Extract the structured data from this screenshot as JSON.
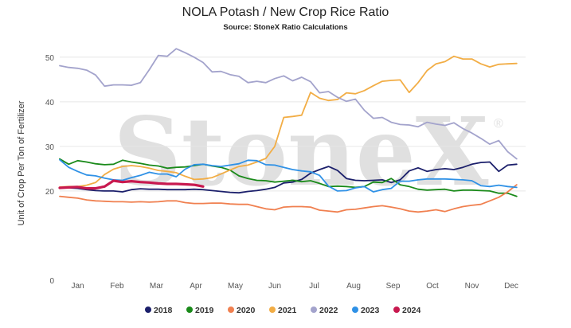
{
  "title": "NOLA Potash / New Crop Rice Ratio",
  "subtitle": "Source: StoneX Ratio Calculations",
  "watermark": {
    "text": "StoneX",
    "mark": "®"
  },
  "chart_data": {
    "type": "line",
    "title": "NOLA Potash / New Crop Rice Ratio",
    "subtitle": "Source: StoneX Ratio Calculations",
    "ylabel": "Unit of Crop Per Ton of Fertilizer",
    "xlabel": "",
    "ylim": [
      0,
      53
    ],
    "yticks": [
      0,
      20,
      30,
      40,
      50
    ],
    "xlim": [
      0,
      52
    ],
    "month_ticks": [
      {
        "label": "Jan",
        "week": 2
      },
      {
        "label": "Feb",
        "week": 6.4
      },
      {
        "label": "Mar",
        "week": 10.8
      },
      {
        "label": "Apr",
        "week": 15.2
      },
      {
        "label": "May",
        "week": 19.6
      },
      {
        "label": "Jun",
        "week": 24
      },
      {
        "label": "Jul",
        "week": 28.4
      },
      {
        "label": "Aug",
        "week": 32.8
      },
      {
        "label": "Sep",
        "week": 37.2
      },
      {
        "label": "Oct",
        "week": 41.6
      },
      {
        "label": "Nov",
        "week": 46
      },
      {
        "label": "Dec",
        "week": 50.4
      }
    ],
    "grid": "horizontal",
    "legend": "bottom",
    "series": [
      {
        "name": "2018",
        "color": "#1b1f6b",
        "values": [
          20.7,
          20.7,
          20.6,
          20.3,
          20.1,
          20.0,
          20.0,
          19.8,
          20.3,
          20.5,
          20.4,
          20.4,
          20.3,
          20.3,
          20.3,
          20.4,
          20.3,
          20.1,
          19.9,
          19.7,
          19.6,
          19.9,
          20.1,
          20.4,
          20.8,
          21.8,
          22.0,
          22.6,
          24.0,
          24.8,
          25.5,
          24.6,
          22.8,
          22.4,
          22.3,
          22.4,
          22.5,
          21.9,
          22.5,
          24.5,
          25.2,
          24.4,
          24.8,
          25.0,
          24.8,
          25.3,
          26.0,
          26.4,
          26.5,
          24.4,
          25.8,
          26.0
        ]
      },
      {
        "name": "2019",
        "color": "#1a8a1a",
        "values": [
          27.2,
          26.0,
          26.8,
          26.5,
          26.1,
          25.9,
          26.0,
          26.9,
          26.5,
          26.2,
          25.8,
          25.6,
          25.1,
          25.3,
          25.4,
          25.7,
          26.0,
          25.6,
          25.3,
          24.7,
          23.4,
          22.8,
          22.4,
          22.3,
          22.0,
          22.2,
          22.4,
          22.1,
          22.3,
          21.7,
          21.0,
          21.1,
          21.0,
          20.8,
          21.0,
          22.0,
          21.9,
          22.8,
          21.4,
          21.0,
          20.4,
          20.2,
          20.3,
          20.4,
          20.0,
          20.2,
          20.2,
          20.1,
          20.0,
          19.5,
          19.5,
          18.8
        ]
      },
      {
        "name": "2020",
        "color": "#f08050",
        "values": [
          18.8,
          18.6,
          18.4,
          18.0,
          17.8,
          17.7,
          17.6,
          17.6,
          17.5,
          17.6,
          17.5,
          17.6,
          17.8,
          17.8,
          17.4,
          17.2,
          17.2,
          17.3,
          17.3,
          17.1,
          17.0,
          17.0,
          16.5,
          16.0,
          15.8,
          16.4,
          16.5,
          16.5,
          16.4,
          15.7,
          15.5,
          15.3,
          15.8,
          15.9,
          16.2,
          16.5,
          16.7,
          16.4,
          16.0,
          15.5,
          15.3,
          15.5,
          15.8,
          15.4,
          16.0,
          16.5,
          16.8,
          17.0,
          17.8,
          18.6,
          19.8,
          21.4
        ]
      },
      {
        "name": "2021",
        "color": "#f2ad45",
        "values": [
          20.9,
          21.0,
          21.0,
          21.3,
          21.9,
          23.7,
          24.9,
          25.5,
          25.7,
          25.5,
          25.1,
          24.6,
          24.4,
          24.1,
          23.3,
          22.6,
          22.7,
          23.0,
          23.8,
          24.7,
          25.5,
          25.8,
          26.5,
          27.3,
          30.0,
          36.5,
          36.7,
          37.0,
          42.1,
          40.8,
          40.3,
          40.5,
          42.0,
          41.8,
          42.5,
          43.6,
          44.6,
          44.8,
          44.9,
          42.1,
          44.3,
          47.0,
          48.5,
          49.0,
          50.2,
          49.6,
          49.6,
          48.5,
          47.8,
          48.4,
          48.5,
          48.6
        ]
      },
      {
        "name": "2022",
        "color": "#a3a3cc",
        "values": [
          48.1,
          47.7,
          47.5,
          47.1,
          46.0,
          43.5,
          43.8,
          43.8,
          43.7,
          44.3,
          47.2,
          50.4,
          50.2,
          51.9,
          51.0,
          50.0,
          48.8,
          46.7,
          46.8,
          46.1,
          45.7,
          44.3,
          44.6,
          44.3,
          45.2,
          45.8,
          44.7,
          45.5,
          44.5,
          42.0,
          42.3,
          41.0,
          40.1,
          40.6,
          38.1,
          36.3,
          36.5,
          35.4,
          34.9,
          34.8,
          34.4,
          35.4,
          35.0,
          34.7,
          35.3,
          34.0,
          33.0,
          31.8,
          30.5,
          31.3,
          28.8,
          27.2
        ]
      },
      {
        "name": "2023",
        "color": "#2f91e6",
        "values": [
          27.0,
          25.3,
          24.4,
          23.6,
          23.4,
          22.9,
          22.5,
          22.4,
          23.0,
          23.5,
          24.2,
          23.8,
          23.8,
          23.2,
          24.9,
          25.9,
          26.0,
          25.7,
          25.5,
          25.8,
          26.1,
          26.9,
          26.8,
          25.9,
          25.8,
          25.3,
          24.8,
          24.5,
          24.3,
          23.5,
          21.1,
          20.0,
          20.1,
          20.7,
          21.0,
          19.8,
          20.3,
          20.6,
          22.2,
          22.2,
          22.5,
          22.7,
          22.7,
          22.7,
          22.6,
          22.5,
          22.3,
          21.2,
          21.0,
          21.3,
          21.0,
          20.8
        ]
      },
      {
        "name": "2024",
        "color": "#c8194f",
        "values": [
          20.7,
          20.8,
          20.9,
          20.6,
          20.6,
          21.0,
          22.3,
          22.0,
          22.2,
          22.0,
          21.9,
          21.7,
          21.6,
          21.6,
          21.5,
          21.4,
          21.0
        ]
      }
    ]
  }
}
